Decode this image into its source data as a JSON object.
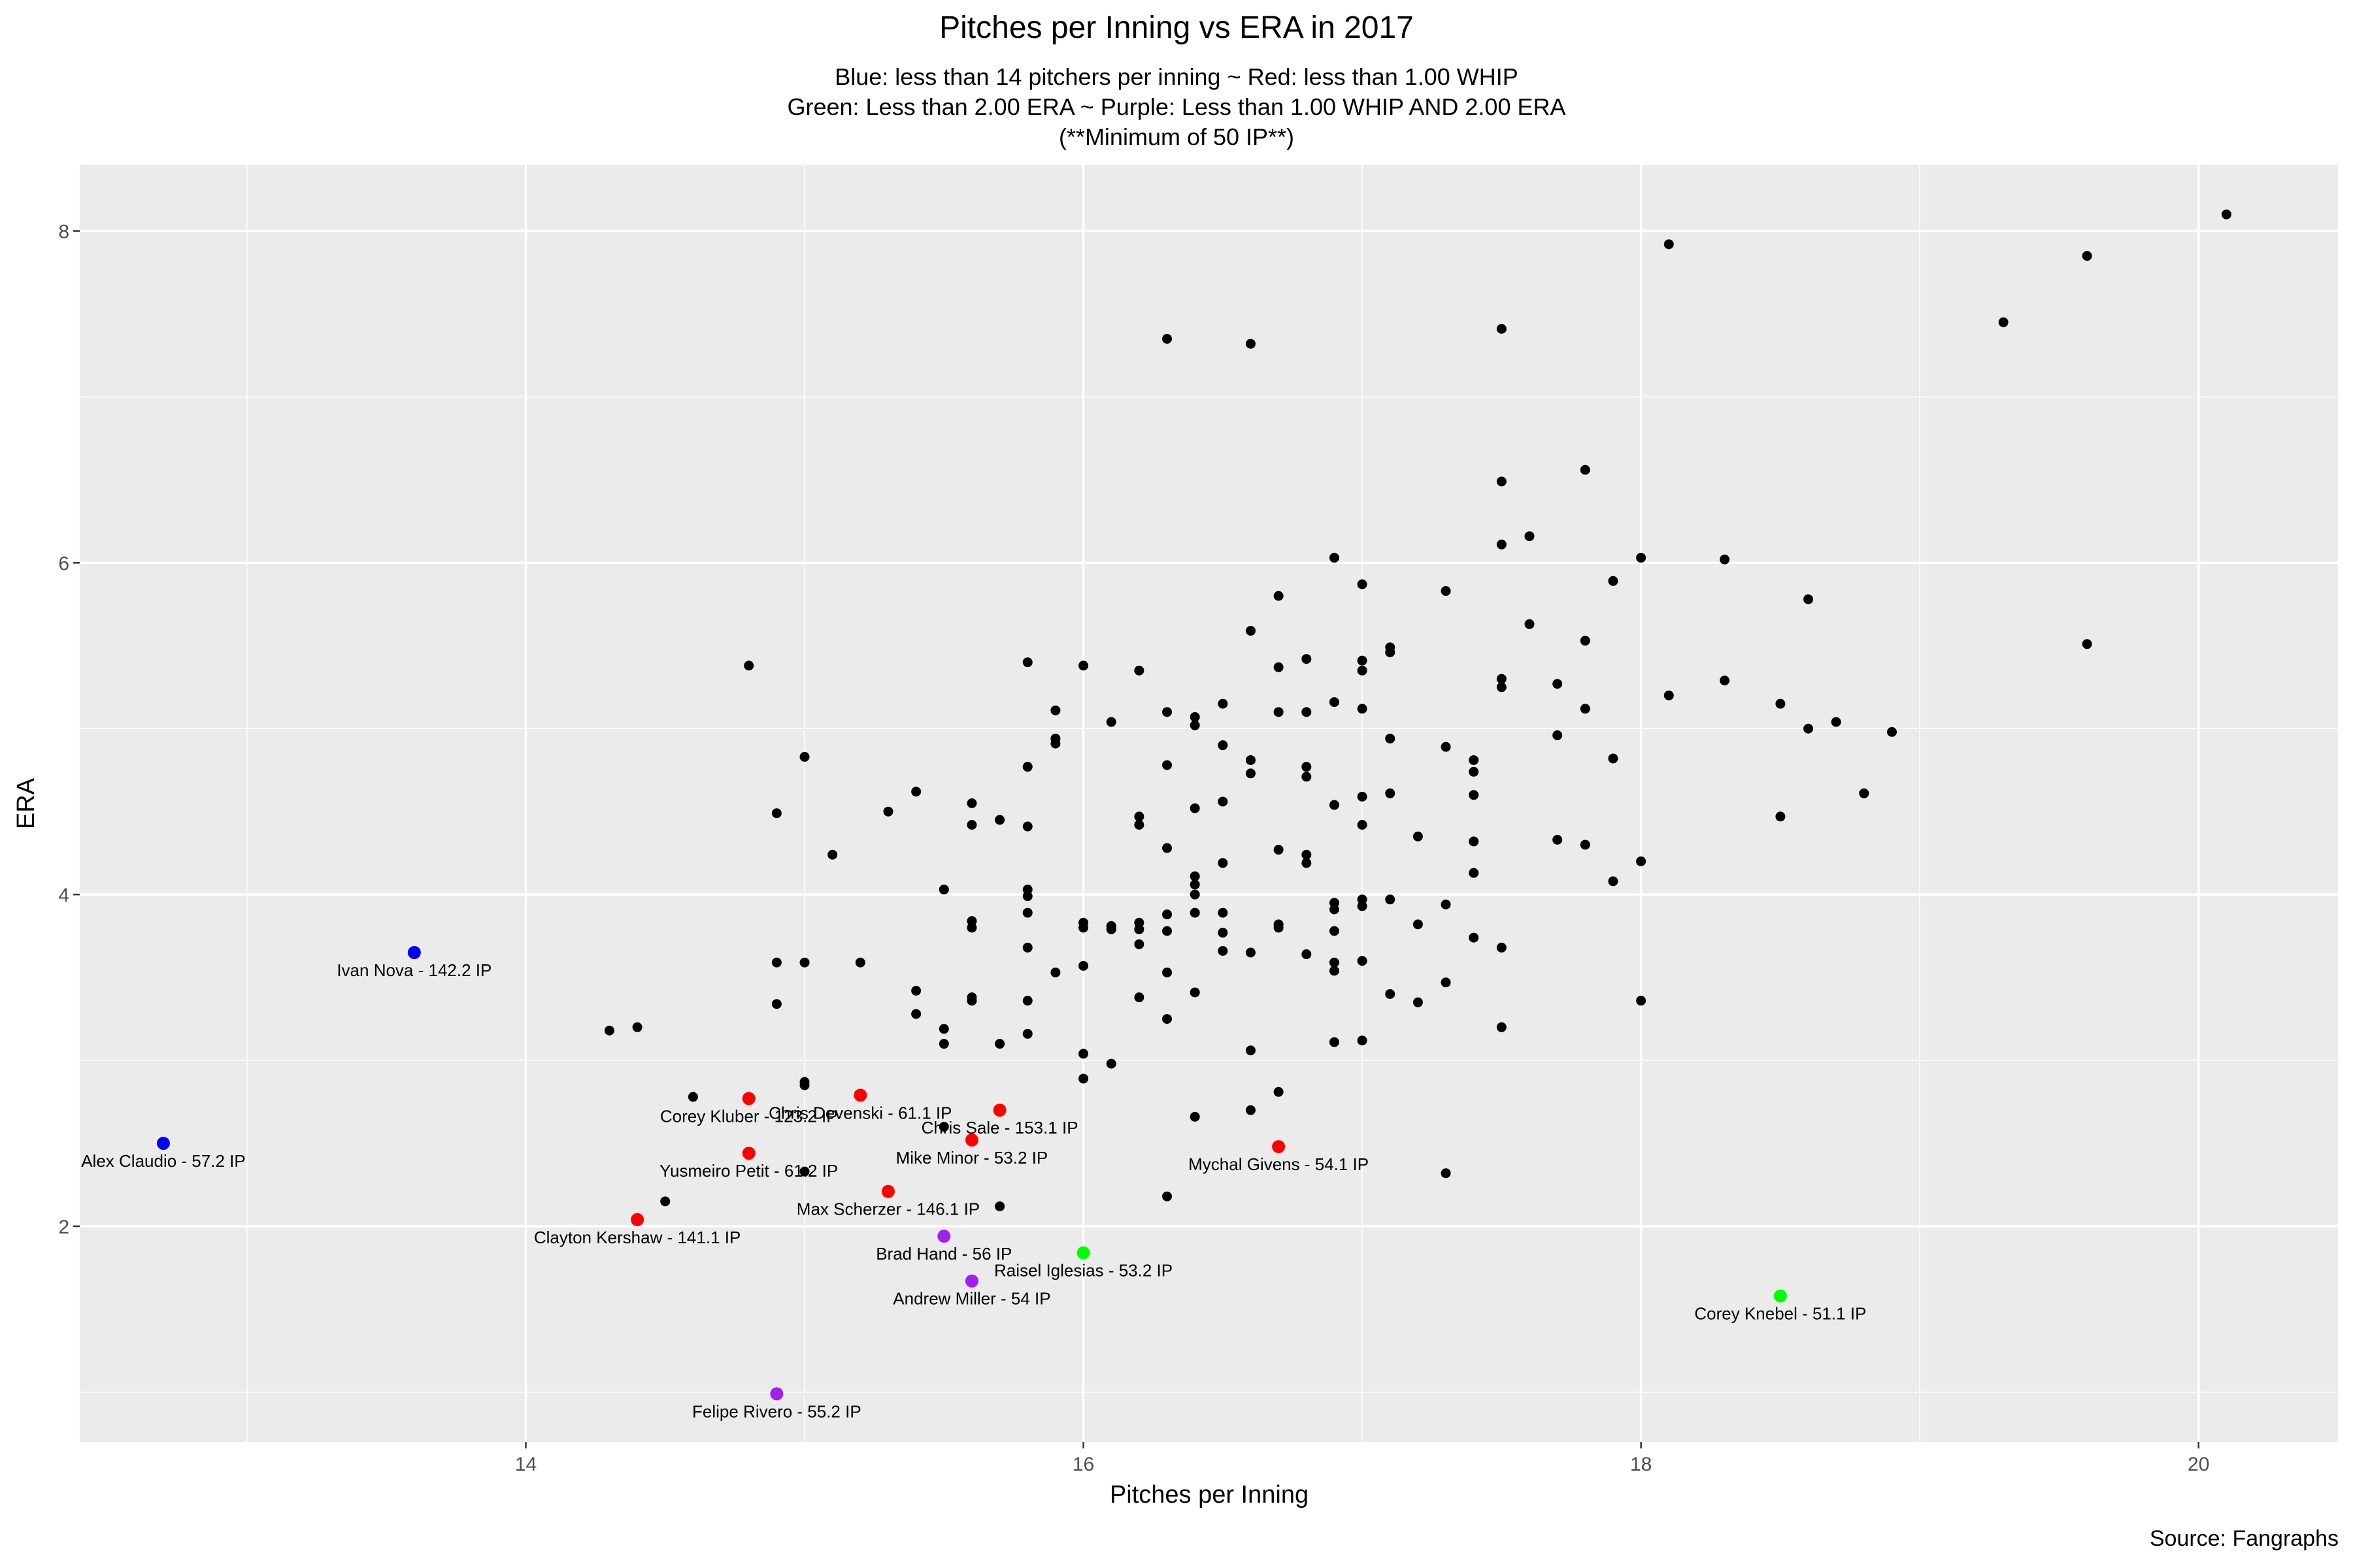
{
  "chart_data": {
    "type": "scatter",
    "title": "Pitches per Inning vs ERA in 2017",
    "subtitle_lines": [
      "Blue: less than 14 pitchers per inning ~ Red: less than 1.00 WHIP",
      "Green: Less than 2.00 ERA ~ Purple: Less than 1.00 WHIP AND 2.00 ERA",
      "(**Minimum of 50 IP**)"
    ],
    "xlabel": "Pitches per Inning",
    "ylabel": "ERA",
    "caption": "Source: Fangraphs",
    "xlim": [
      12.4,
      20.5
    ],
    "ylim": [
      0.7,
      8.4
    ],
    "x_ticks": [
      14,
      16,
      18,
      20
    ],
    "y_ticks": [
      2,
      4,
      6,
      8
    ],
    "grid": true,
    "colors": {
      "panel": "#ebebeb",
      "grid": "#ffffff",
      "default": "#000000",
      "blue": "#0000ff",
      "red": "#ff0000",
      "green": "#00ff00",
      "purple": "#a020f0"
    },
    "points": [
      {
        "x": 12.7,
        "y": 2.5,
        "color": "blue",
        "label": "Alex Claudio - 57.2 IP"
      },
      {
        "x": 13.6,
        "y": 3.65,
        "color": "blue",
        "label": "Ivan Nova - 142.2 IP"
      },
      {
        "x": 14.4,
        "y": 2.04,
        "color": "red",
        "label": "Clayton Kershaw - 141.1 IP"
      },
      {
        "x": 14.8,
        "y": 2.77,
        "color": "red",
        "label": "Corey Kluber - 123.2 IP"
      },
      {
        "x": 14.8,
        "y": 2.44,
        "color": "red",
        "label": "Yusmeiro Petit - 61.2 IP"
      },
      {
        "x": 15.2,
        "y": 2.79,
        "color": "red",
        "label": "Chris Devenski - 61.1 IP"
      },
      {
        "x": 15.7,
        "y": 2.7,
        "color": "red",
        "label": "Chris Sale - 153.1 IP"
      },
      {
        "x": 15.6,
        "y": 2.52,
        "color": "red",
        "label": "Mike Minor - 53.2 IP"
      },
      {
        "x": 15.3,
        "y": 2.21,
        "color": "red",
        "label": "Max Scherzer - 146.1 IP"
      },
      {
        "x": 16.7,
        "y": 2.48,
        "color": "red",
        "label": "Mychal Givens - 54.1 IP"
      },
      {
        "x": 15.5,
        "y": 1.94,
        "color": "purple",
        "label": "Brad Hand - 56 IP"
      },
      {
        "x": 15.6,
        "y": 1.67,
        "color": "purple",
        "label": "Andrew Miller - 54 IP"
      },
      {
        "x": 14.9,
        "y": 0.99,
        "color": "purple",
        "label": "Felipe Rivero - 55.2 IP"
      },
      {
        "x": 16.0,
        "y": 1.84,
        "color": "green",
        "label": "Raisel Iglesias - 53.2 IP"
      },
      {
        "x": 18.5,
        "y": 1.58,
        "color": "green",
        "label": "Corey Knebel - 51.1 IP"
      },
      {
        "x": 14.3,
        "y": 3.18
      },
      {
        "x": 14.4,
        "y": 3.2
      },
      {
        "x": 14.5,
        "y": 2.15
      },
      {
        "x": 14.6,
        "y": 2.78
      },
      {
        "x": 14.8,
        "y": 5.38
      },
      {
        "x": 14.9,
        "y": 4.49
      },
      {
        "x": 14.9,
        "y": 3.59
      },
      {
        "x": 14.9,
        "y": 3.34
      },
      {
        "x": 15.0,
        "y": 4.83
      },
      {
        "x": 15.0,
        "y": 3.59
      },
      {
        "x": 15.0,
        "y": 2.87
      },
      {
        "x": 15.0,
        "y": 2.85
      },
      {
        "x": 15.0,
        "y": 2.33
      },
      {
        "x": 15.1,
        "y": 4.24
      },
      {
        "x": 15.2,
        "y": 3.59
      },
      {
        "x": 15.3,
        "y": 4.5
      },
      {
        "x": 15.4,
        "y": 4.62
      },
      {
        "x": 15.4,
        "y": 3.42
      },
      {
        "x": 15.4,
        "y": 3.28
      },
      {
        "x": 15.5,
        "y": 4.03
      },
      {
        "x": 15.5,
        "y": 3.19
      },
      {
        "x": 15.5,
        "y": 3.1
      },
      {
        "x": 15.5,
        "y": 2.6
      },
      {
        "x": 15.6,
        "y": 4.55
      },
      {
        "x": 15.6,
        "y": 4.42
      },
      {
        "x": 15.6,
        "y": 3.84
      },
      {
        "x": 15.6,
        "y": 3.8
      },
      {
        "x": 15.6,
        "y": 3.38
      },
      {
        "x": 15.6,
        "y": 3.36
      },
      {
        "x": 15.7,
        "y": 4.45
      },
      {
        "x": 15.7,
        "y": 3.1
      },
      {
        "x": 15.7,
        "y": 2.12
      },
      {
        "x": 15.8,
        "y": 5.4
      },
      {
        "x": 15.8,
        "y": 4.77
      },
      {
        "x": 15.8,
        "y": 4.41
      },
      {
        "x": 15.8,
        "y": 4.03
      },
      {
        "x": 15.8,
        "y": 3.99
      },
      {
        "x": 15.8,
        "y": 3.89
      },
      {
        "x": 15.8,
        "y": 3.68
      },
      {
        "x": 15.8,
        "y": 3.36
      },
      {
        "x": 15.8,
        "y": 3.16
      },
      {
        "x": 15.9,
        "y": 5.11
      },
      {
        "x": 15.9,
        "y": 4.94
      },
      {
        "x": 15.9,
        "y": 4.91
      },
      {
        "x": 15.9,
        "y": 3.53
      },
      {
        "x": 16.0,
        "y": 5.38
      },
      {
        "x": 16.0,
        "y": 3.83
      },
      {
        "x": 16.0,
        "y": 3.8
      },
      {
        "x": 16.0,
        "y": 3.57
      },
      {
        "x": 16.0,
        "y": 3.04
      },
      {
        "x": 16.0,
        "y": 2.89
      },
      {
        "x": 16.1,
        "y": 5.04
      },
      {
        "x": 16.1,
        "y": 3.81
      },
      {
        "x": 16.1,
        "y": 3.79
      },
      {
        "x": 16.1,
        "y": 2.98
      },
      {
        "x": 16.2,
        "y": 5.35
      },
      {
        "x": 16.2,
        "y": 4.47
      },
      {
        "x": 16.2,
        "y": 4.42
      },
      {
        "x": 16.2,
        "y": 3.83
      },
      {
        "x": 16.2,
        "y": 3.79
      },
      {
        "x": 16.2,
        "y": 3.7
      },
      {
        "x": 16.2,
        "y": 3.38
      },
      {
        "x": 16.3,
        "y": 7.35
      },
      {
        "x": 16.3,
        "y": 5.1
      },
      {
        "x": 16.3,
        "y": 4.78
      },
      {
        "x": 16.3,
        "y": 4.28
      },
      {
        "x": 16.3,
        "y": 3.88
      },
      {
        "x": 16.3,
        "y": 3.78
      },
      {
        "x": 16.3,
        "y": 3.53
      },
      {
        "x": 16.3,
        "y": 3.25
      },
      {
        "x": 16.3,
        "y": 2.18
      },
      {
        "x": 16.4,
        "y": 5.07
      },
      {
        "x": 16.4,
        "y": 5.02
      },
      {
        "x": 16.4,
        "y": 4.52
      },
      {
        "x": 16.4,
        "y": 4.11
      },
      {
        "x": 16.4,
        "y": 4.06
      },
      {
        "x": 16.4,
        "y": 4.0
      },
      {
        "x": 16.4,
        "y": 3.89
      },
      {
        "x": 16.4,
        "y": 3.41
      },
      {
        "x": 16.4,
        "y": 2.66
      },
      {
        "x": 16.5,
        "y": 5.15
      },
      {
        "x": 16.5,
        "y": 4.9
      },
      {
        "x": 16.5,
        "y": 4.56
      },
      {
        "x": 16.5,
        "y": 4.19
      },
      {
        "x": 16.5,
        "y": 3.89
      },
      {
        "x": 16.5,
        "y": 3.77
      },
      {
        "x": 16.5,
        "y": 3.66
      },
      {
        "x": 16.6,
        "y": 7.32
      },
      {
        "x": 16.6,
        "y": 5.59
      },
      {
        "x": 16.6,
        "y": 4.81
      },
      {
        "x": 16.6,
        "y": 4.73
      },
      {
        "x": 16.6,
        "y": 3.65
      },
      {
        "x": 16.6,
        "y": 3.06
      },
      {
        "x": 16.6,
        "y": 2.7
      },
      {
        "x": 16.7,
        "y": 5.8
      },
      {
        "x": 16.7,
        "y": 5.37
      },
      {
        "x": 16.7,
        "y": 5.1
      },
      {
        "x": 16.7,
        "y": 4.27
      },
      {
        "x": 16.7,
        "y": 3.82
      },
      {
        "x": 16.7,
        "y": 3.8
      },
      {
        "x": 16.7,
        "y": 2.81
      },
      {
        "x": 16.8,
        "y": 5.42
      },
      {
        "x": 16.8,
        "y": 5.1
      },
      {
        "x": 16.8,
        "y": 4.77
      },
      {
        "x": 16.8,
        "y": 4.71
      },
      {
        "x": 16.8,
        "y": 4.24
      },
      {
        "x": 16.8,
        "y": 4.19
      },
      {
        "x": 16.8,
        "y": 3.64
      },
      {
        "x": 16.9,
        "y": 6.03
      },
      {
        "x": 16.9,
        "y": 5.16
      },
      {
        "x": 16.9,
        "y": 4.54
      },
      {
        "x": 16.9,
        "y": 3.95
      },
      {
        "x": 16.9,
        "y": 3.91
      },
      {
        "x": 16.9,
        "y": 3.78
      },
      {
        "x": 16.9,
        "y": 3.59
      },
      {
        "x": 16.9,
        "y": 3.54
      },
      {
        "x": 16.9,
        "y": 3.11
      },
      {
        "x": 17.0,
        "y": 5.87
      },
      {
        "x": 17.0,
        "y": 5.41
      },
      {
        "x": 17.0,
        "y": 5.35
      },
      {
        "x": 17.0,
        "y": 5.12
      },
      {
        "x": 17.0,
        "y": 4.59
      },
      {
        "x": 17.0,
        "y": 4.42
      },
      {
        "x": 17.0,
        "y": 3.97
      },
      {
        "x": 17.0,
        "y": 3.93
      },
      {
        "x": 17.0,
        "y": 3.6
      },
      {
        "x": 17.0,
        "y": 3.12
      },
      {
        "x": 17.1,
        "y": 5.49
      },
      {
        "x": 17.1,
        "y": 5.46
      },
      {
        "x": 17.1,
        "y": 4.94
      },
      {
        "x": 17.1,
        "y": 4.61
      },
      {
        "x": 17.1,
        "y": 3.97
      },
      {
        "x": 17.1,
        "y": 3.4
      },
      {
        "x": 17.2,
        "y": 4.35
      },
      {
        "x": 17.2,
        "y": 3.82
      },
      {
        "x": 17.2,
        "y": 3.35
      },
      {
        "x": 17.3,
        "y": 5.83
      },
      {
        "x": 17.3,
        "y": 4.89
      },
      {
        "x": 17.3,
        "y": 3.94
      },
      {
        "x": 17.3,
        "y": 3.47
      },
      {
        "x": 17.3,
        "y": 2.32
      },
      {
        "x": 17.4,
        "y": 4.81
      },
      {
        "x": 17.4,
        "y": 4.74
      },
      {
        "x": 17.4,
        "y": 4.6
      },
      {
        "x": 17.4,
        "y": 4.32
      },
      {
        "x": 17.4,
        "y": 4.13
      },
      {
        "x": 17.4,
        "y": 3.74
      },
      {
        "x": 17.5,
        "y": 7.41
      },
      {
        "x": 17.5,
        "y": 6.49
      },
      {
        "x": 17.5,
        "y": 6.11
      },
      {
        "x": 17.5,
        "y": 5.3
      },
      {
        "x": 17.5,
        "y": 5.25
      },
      {
        "x": 17.5,
        "y": 3.68
      },
      {
        "x": 17.5,
        "y": 3.2
      },
      {
        "x": 17.6,
        "y": 6.16
      },
      {
        "x": 17.6,
        "y": 5.63
      },
      {
        "x": 17.7,
        "y": 5.27
      },
      {
        "x": 17.7,
        "y": 4.96
      },
      {
        "x": 17.7,
        "y": 4.33
      },
      {
        "x": 17.8,
        "y": 6.56
      },
      {
        "x": 17.8,
        "y": 5.53
      },
      {
        "x": 17.8,
        "y": 5.12
      },
      {
        "x": 17.8,
        "y": 4.3
      },
      {
        "x": 17.9,
        "y": 5.89
      },
      {
        "x": 17.9,
        "y": 4.82
      },
      {
        "x": 17.9,
        "y": 4.08
      },
      {
        "x": 18.0,
        "y": 6.03
      },
      {
        "x": 18.0,
        "y": 4.2
      },
      {
        "x": 18.0,
        "y": 3.36
      },
      {
        "x": 18.1,
        "y": 7.92
      },
      {
        "x": 18.1,
        "y": 5.2
      },
      {
        "x": 18.3,
        "y": 6.02
      },
      {
        "x": 18.3,
        "y": 5.29
      },
      {
        "x": 18.5,
        "y": 5.15
      },
      {
        "x": 18.5,
        "y": 4.47
      },
      {
        "x": 18.6,
        "y": 5.78
      },
      {
        "x": 18.6,
        "y": 5.0
      },
      {
        "x": 18.7,
        "y": 5.04
      },
      {
        "x": 18.8,
        "y": 4.61
      },
      {
        "x": 18.9,
        "y": 4.98
      },
      {
        "x": 19.3,
        "y": 7.45
      },
      {
        "x": 19.6,
        "y": 7.85
      },
      {
        "x": 19.6,
        "y": 5.51
      },
      {
        "x": 20.1,
        "y": 8.1
      }
    ]
  }
}
